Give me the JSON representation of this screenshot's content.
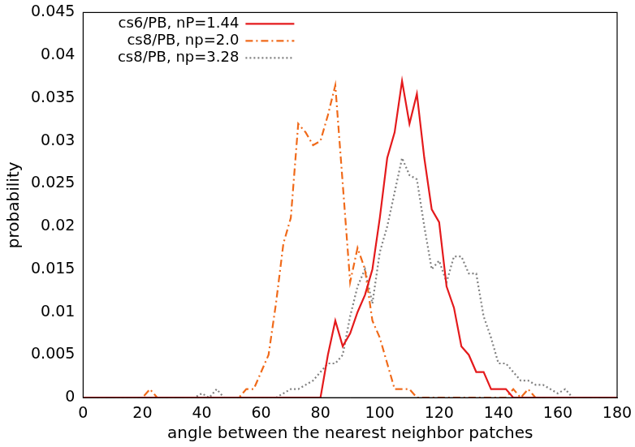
{
  "chart_data": {
    "type": "line",
    "x_label": "angle between the nearest neighbor patches",
    "y_label": "probability",
    "x": [
      0,
      2.5,
      5,
      7.5,
      10,
      12.5,
      15,
      17.5,
      20,
      22.5,
      25,
      27.5,
      30,
      32.5,
      35,
      37.5,
      40,
      42.5,
      45,
      47.5,
      50,
      52.5,
      55,
      57.5,
      60,
      62.5,
      65,
      67.5,
      70,
      72.5,
      75,
      77.5,
      80,
      82.5,
      85,
      87.5,
      90,
      92.5,
      95,
      97.5,
      100,
      102.5,
      105,
      107.5,
      110,
      112.5,
      115,
      117.5,
      120,
      122.5,
      125,
      127.5,
      130,
      132.5,
      135,
      137.5,
      140,
      142.5,
      145,
      147.5,
      150,
      152.5,
      155,
      157.5,
      160,
      162.5,
      165,
      167.5,
      170,
      172.5,
      175,
      177.5,
      180
    ],
    "series": [
      {
        "name": "cs6/PB, nP=1.44",
        "color": "#e41a1c",
        "line_style": "solid",
        "values": [
          0,
          0,
          0,
          0,
          0,
          0,
          0,
          0,
          0,
          0,
          0,
          0,
          0,
          0,
          0,
          0,
          0,
          0,
          0,
          0,
          0,
          0,
          0,
          0,
          0,
          0,
          0,
          0,
          0,
          0,
          0,
          0,
          0,
          0.005,
          0.009,
          0.006,
          0.0075,
          0.01,
          0.012,
          0.015,
          0.021,
          0.028,
          0.031,
          0.037,
          0.032,
          0.0355,
          0.028,
          0.022,
          0.0205,
          0.013,
          0.0105,
          0.006,
          0.005,
          0.003,
          0.003,
          0.001,
          0.001,
          0.001,
          0,
          0,
          0,
          0,
          0,
          0,
          0,
          0,
          0,
          0,
          0,
          0,
          0,
          0,
          0
        ]
      },
      {
        "name": "cs8/PB, np=2.0",
        "color": "#f06a1a",
        "line_style": "dashdot",
        "values": [
          0,
          0,
          0,
          0,
          0,
          0,
          0,
          0,
          0,
          0.001,
          0,
          0,
          0,
          0,
          0,
          0,
          0,
          0,
          0,
          0,
          0,
          0,
          0.001,
          0.001,
          0.003,
          0.005,
          0.011,
          0.018,
          0.021,
          0.032,
          0.031,
          0.0295,
          0.03,
          0.033,
          0.0365,
          0.025,
          0.0135,
          0.0175,
          0.015,
          0.009,
          0.007,
          0.004,
          0.001,
          0.001,
          0.001,
          0,
          0,
          0,
          0,
          0,
          0,
          0,
          0,
          0,
          0,
          0,
          0,
          0,
          0.001,
          0,
          0.001,
          0,
          0,
          0,
          0,
          0,
          0,
          0,
          0,
          0,
          0,
          0,
          0
        ]
      },
      {
        "name": "cs8/PB, np=3.28",
        "color": "#808080",
        "line_style": "dotted",
        "values": [
          0,
          0,
          0,
          0,
          0,
          0,
          0,
          0,
          0,
          0,
          0,
          0,
          0,
          0,
          0,
          0,
          0.0005,
          0,
          0.001,
          0,
          0,
          0,
          0,
          0,
          0,
          0,
          0,
          0.0005,
          0.001,
          0.001,
          0.0015,
          0.002,
          0.003,
          0.004,
          0.004,
          0.005,
          0.0095,
          0.013,
          0.015,
          0.011,
          0.017,
          0.02,
          0.024,
          0.028,
          0.026,
          0.0255,
          0.02,
          0.015,
          0.016,
          0.0135,
          0.0165,
          0.0165,
          0.0145,
          0.0145,
          0.0095,
          0.007,
          0.004,
          0.004,
          0.003,
          0.002,
          0.002,
          0.0015,
          0.0015,
          0.001,
          0.0005,
          0.001,
          0,
          0,
          0,
          0,
          0,
          0,
          0
        ]
      }
    ],
    "xlim": [
      0,
      180
    ],
    "xticks": [
      0,
      20,
      40,
      60,
      80,
      100,
      120,
      140,
      160,
      180
    ],
    "ylim": [
      0,
      0.045
    ],
    "yticks": [
      0,
      0.005,
      0.01,
      0.015,
      0.02,
      0.025,
      0.03,
      0.035,
      0.04,
      0.045
    ],
    "grid": false,
    "legend": "upper left"
  }
}
